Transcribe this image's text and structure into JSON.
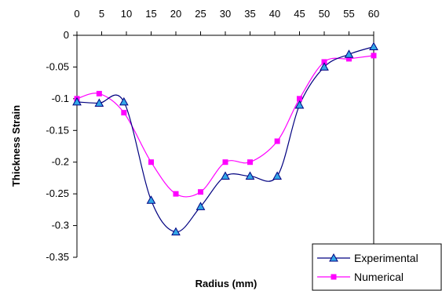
{
  "chart_data": {
    "type": "line",
    "title": "",
    "xlabel": "Radius (mm)",
    "ylabel": "Thickness Strain",
    "xlim": [
      0,
      60
    ],
    "ylim": [
      -0.35,
      0
    ],
    "x_ticks": [
      0,
      5,
      10,
      15,
      20,
      25,
      30,
      35,
      40,
      45,
      50,
      55,
      60
    ],
    "x_tick_labels": [
      "0",
      "5",
      "10",
      "15",
      "20",
      "25",
      "30",
      "35",
      "40",
      "45",
      "50",
      "55",
      "60"
    ],
    "y_ticks": [
      0,
      -0.05,
      -0.1,
      -0.15,
      -0.2,
      -0.25,
      -0.3,
      -0.35
    ],
    "y_tick_labels": [
      "0",
      "-0.05",
      "-0.1",
      "-0.15",
      "-0.2",
      "-0.25",
      "-0.3",
      "-0.35"
    ],
    "x_axis_position": "top",
    "grid": false,
    "legend_position": "bottom-right",
    "series": [
      {
        "name": "Experimental",
        "color": "#000080",
        "marker": "triangle",
        "marker_color": "#33a6e6",
        "x": [
          0,
          4.5,
          9.5,
          15,
          20,
          25,
          30,
          35,
          40.5,
          45,
          50,
          55,
          60
        ],
        "y": [
          -0.105,
          -0.107,
          -0.105,
          -0.26,
          -0.31,
          -0.27,
          -0.222,
          -0.222,
          -0.222,
          -0.11,
          -0.05,
          -0.03,
          -0.018
        ]
      },
      {
        "name": "Numerical",
        "color": "#ff00ff",
        "marker": "square",
        "marker_color": "#ff00ff",
        "x": [
          0,
          4.5,
          9.5,
          15,
          20,
          25,
          30,
          35,
          40.5,
          45,
          50,
          55,
          60
        ],
        "y": [
          -0.1,
          -0.092,
          -0.122,
          -0.2,
          -0.25,
          -0.247,
          -0.2,
          -0.2,
          -0.167,
          -0.1,
          -0.042,
          -0.037,
          -0.032
        ]
      }
    ]
  }
}
